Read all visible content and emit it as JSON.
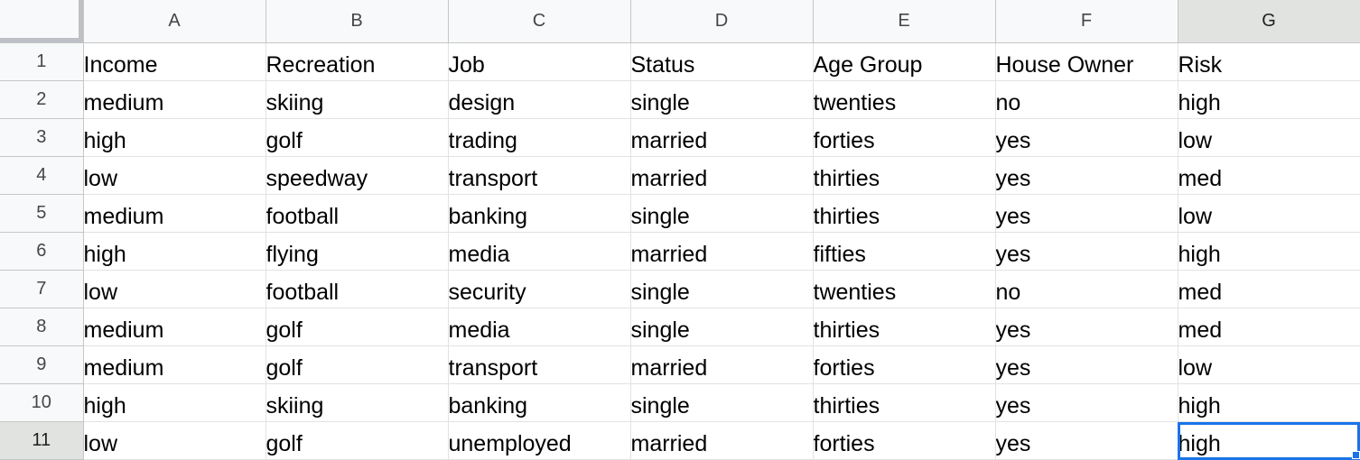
{
  "columns": [
    "A",
    "B",
    "C",
    "D",
    "E",
    "F",
    "G"
  ],
  "rows": [
    {
      "num": "1",
      "cells": [
        "Income",
        "Recreation",
        "Job",
        "Status",
        "Age Group",
        "House Owner",
        "Risk"
      ]
    },
    {
      "num": "2",
      "cells": [
        "medium",
        "skiing",
        "design",
        "single",
        "twenties",
        "no",
        "high"
      ]
    },
    {
      "num": "3",
      "cells": [
        "high",
        "golf",
        "trading",
        "married",
        "forties",
        "yes",
        "low"
      ]
    },
    {
      "num": "4",
      "cells": [
        "low",
        "speedway",
        "transport",
        "married",
        "thirties",
        "yes",
        "med"
      ]
    },
    {
      "num": "5",
      "cells": [
        "medium",
        "football",
        "banking",
        "single",
        "thirties",
        "yes",
        "low"
      ]
    },
    {
      "num": "6",
      "cells": [
        "high",
        "flying",
        "media",
        "married",
        "fifties",
        "yes",
        "high"
      ]
    },
    {
      "num": "7",
      "cells": [
        "low",
        "football",
        "security",
        "single",
        "twenties",
        "no",
        "med"
      ]
    },
    {
      "num": "8",
      "cells": [
        "medium",
        "golf",
        "media",
        "single",
        "thirties",
        "yes",
        "med"
      ]
    },
    {
      "num": "9",
      "cells": [
        "medium",
        "golf",
        "transport",
        "married",
        "forties",
        "yes",
        "low"
      ]
    },
    {
      "num": "10",
      "cells": [
        "high",
        "skiing",
        "banking",
        "single",
        "thirties",
        "yes",
        "high"
      ]
    },
    {
      "num": "11",
      "cells": [
        "low",
        "golf",
        "unemployed",
        "married",
        "forties",
        "yes",
        "high"
      ]
    }
  ],
  "selection": {
    "column": "G",
    "row": "11",
    "cell": "G11"
  },
  "colors": {
    "selection_accent": "#1a73e8",
    "header_background": "#f8f9fa",
    "selected_header_background": "#e1e3e1"
  }
}
